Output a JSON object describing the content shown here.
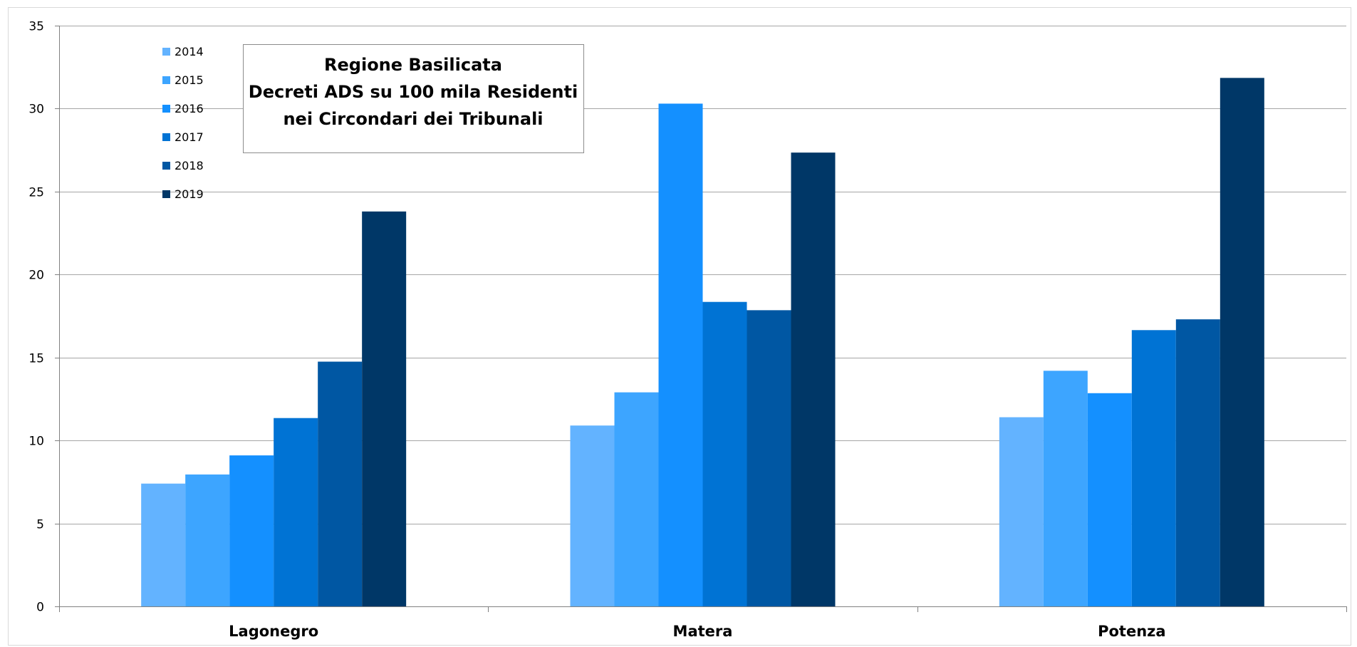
{
  "chart_data": {
    "type": "bar",
    "title_lines": [
      "Regione Basilicata",
      "Decreti ADS su 100 mila Residenti",
      "nei Circondari dei Tribunali"
    ],
    "categories": [
      "Lagonegro",
      "Matera",
      "Potenza"
    ],
    "series": [
      {
        "name": "2014",
        "color": "#63B3FF",
        "values": [
          7.4,
          10.9,
          11.4
        ]
      },
      {
        "name": "2015",
        "color": "#3DA5FF",
        "values": [
          7.95,
          12.9,
          14.2
        ]
      },
      {
        "name": "2016",
        "color": "#1490FF",
        "values": [
          9.1,
          30.3,
          12.85
        ]
      },
      {
        "name": "2017",
        "color": "#0073D4",
        "values": [
          11.35,
          18.35,
          16.65
        ]
      },
      {
        "name": "2018",
        "color": "#0057A3",
        "values": [
          14.75,
          17.85,
          17.3
        ]
      },
      {
        "name": "2019",
        "color": "#003767",
        "values": [
          23.8,
          27.35,
          31.85
        ]
      }
    ],
    "ylim": [
      0,
      35
    ],
    "yticks": [
      "0",
      "5",
      "10",
      "15",
      "20",
      "25",
      "30",
      "35"
    ],
    "grid": true,
    "legend_position": "top-left"
  }
}
